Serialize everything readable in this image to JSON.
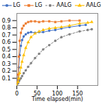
{
  "chart_data": {
    "type": "line",
    "xlabel": "Time elapsed(min)",
    "xlim": [
      0,
      200
    ],
    "ylim": [
      0,
      1.0
    ],
    "xticks": [
      0,
      50,
      100,
      150
    ],
    "yticks": [
      0.1,
      0.2,
      0.3,
      0.4,
      0.5,
      0.6,
      0.7,
      0.8,
      0.9
    ],
    "series": [
      {
        "name": "LG",
        "color": "#4472C4",
        "marker": "circle",
        "line_style": "solid",
        "x": [
          0,
          3,
          5,
          7,
          10,
          13,
          17,
          22,
          28,
          35,
          45,
          55,
          65,
          80,
          95,
          110,
          130,
          155,
          170
        ],
        "values": [
          0.0,
          0.08,
          0.25,
          0.42,
          0.55,
          0.63,
          0.68,
          0.71,
          0.73,
          0.74,
          0.73,
          0.74,
          0.74,
          0.76,
          0.77,
          0.79,
          0.81,
          0.83,
          0.84
        ]
      },
      {
        "name": "LG",
        "color": "#ED7D31",
        "marker": "square",
        "line_style": "solid",
        "x": [
          0,
          3,
          5,
          7,
          10,
          13,
          17,
          22,
          28,
          35,
          45,
          55,
          65,
          80,
          95,
          110,
          130,
          155
        ],
        "values": [
          0.0,
          0.15,
          0.4,
          0.62,
          0.73,
          0.79,
          0.83,
          0.86,
          0.88,
          0.89,
          0.89,
          0.88,
          0.89,
          0.89,
          0.88,
          0.89,
          0.9,
          0.9
        ]
      },
      {
        "name": "AALG",
        "color": "#808080",
        "marker": "circle",
        "line_style": "dashed",
        "x": [
          0,
          3,
          5,
          7,
          10,
          13,
          17,
          22,
          28,
          35,
          45,
          55,
          65,
          80,
          95,
          110,
          130,
          155,
          175,
          185
        ],
        "values": [
          0.0,
          0.03,
          0.06,
          0.08,
          0.1,
          0.13,
          0.17,
          0.21,
          0.26,
          0.31,
          0.38,
          0.44,
          0.5,
          0.56,
          0.62,
          0.67,
          0.71,
          0.75,
          0.77,
          0.78
        ]
      },
      {
        "name": "AALG",
        "color": "#FFC000",
        "marker": "triangle",
        "line_style": "solid",
        "x": [
          0,
          3,
          5,
          7,
          10,
          13,
          17,
          22,
          28,
          35,
          45,
          55,
          65,
          80,
          95,
          110,
          130,
          155,
          175,
          185
        ],
        "values": [
          0.0,
          0.05,
          0.1,
          0.17,
          0.25,
          0.33,
          0.42,
          0.52,
          0.6,
          0.67,
          0.72,
          0.75,
          0.77,
          0.79,
          0.8,
          0.81,
          0.83,
          0.86,
          0.87,
          0.88
        ]
      }
    ]
  }
}
